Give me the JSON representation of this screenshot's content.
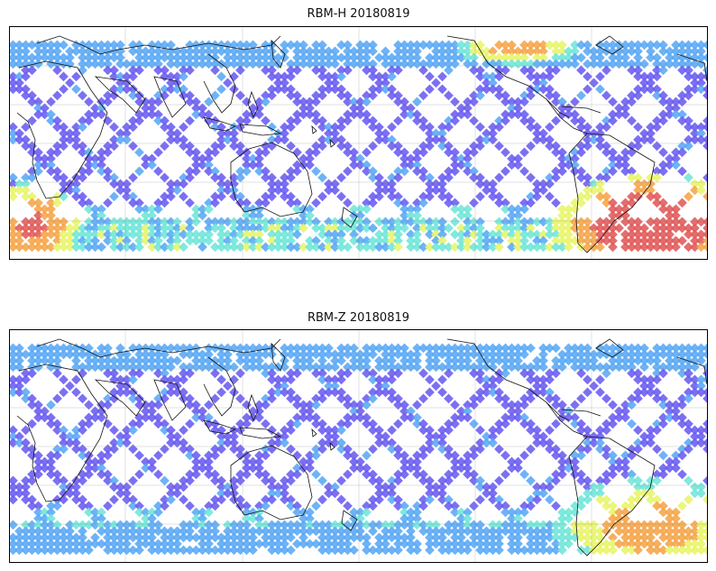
{
  "panels": [
    {
      "title": "RBM-H 20180819",
      "palette": "jet",
      "hotspots": [
        {
          "region": "south-atlantic",
          "level": 0.95
        },
        {
          "region": "southern-ocean-west",
          "level": 0.8
        },
        {
          "region": "southern-ocean-band",
          "level": 0.55
        },
        {
          "region": "north-atlantic-top",
          "level": 0.7
        }
      ]
    },
    {
      "title": "RBM-Z 20180819",
      "palette": "jet",
      "hotspots": [
        {
          "region": "south-atlantic",
          "level": 0.7
        },
        {
          "region": "southern-ocean-band",
          "level": 0.35
        }
      ]
    }
  ],
  "colors": {
    "low": "#6a5cf0",
    "lowmid": "#5aa8f5",
    "mid": "#6fe6d8",
    "midhigh": "#e8f56a",
    "high": "#f5a54a",
    "max": "#e05a5a"
  }
}
